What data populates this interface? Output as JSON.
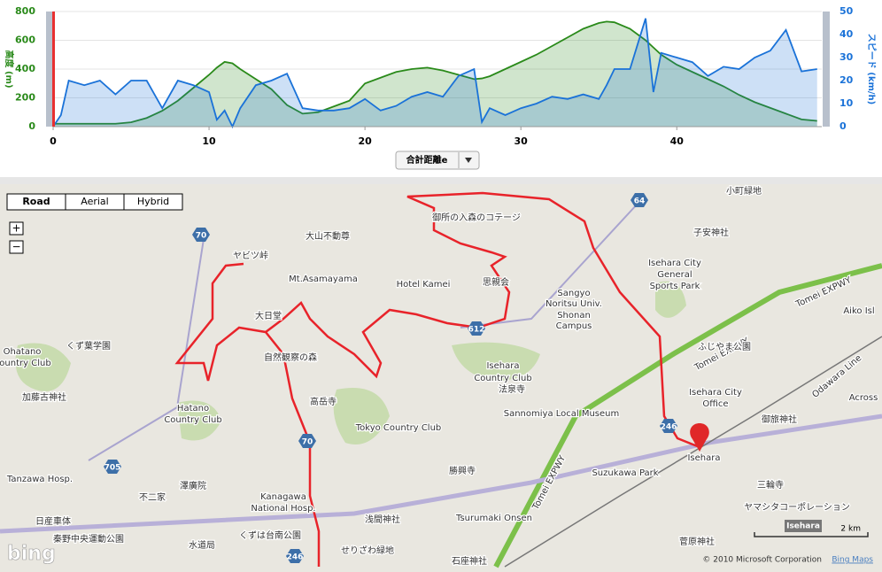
{
  "chart_data": {
    "type": "area",
    "x": [
      0,
      0.5,
      1,
      2,
      3,
      4,
      5,
      6,
      7,
      8,
      9,
      10,
      10.5,
      11,
      11.5,
      12,
      13,
      14,
      15,
      16,
      17,
      18,
      19,
      20,
      21,
      22,
      23,
      24,
      25,
      26,
      27,
      27.5,
      28,
      29,
      30,
      31,
      32,
      33,
      34,
      35,
      35.5,
      36,
      37,
      38,
      38.5,
      39,
      40,
      41,
      42,
      43,
      44,
      45,
      46,
      47,
      48,
      49
    ],
    "series": [
      {
        "color": "#2a8a1a",
        "axis": "y",
        "values": [
          20,
          20,
          20,
          20,
          20,
          20,
          30,
          60,
          110,
          180,
          270,
          360,
          410,
          450,
          440,
          400,
          330,
          260,
          150,
          90,
          100,
          140,
          180,
          300,
          340,
          380,
          400,
          410,
          390,
          360,
          330,
          335,
          350,
          400,
          450,
          500,
          560,
          620,
          680,
          720,
          730,
          725,
          680,
          600,
          550,
          500,
          430,
          380,
          330,
          280,
          220,
          170,
          130,
          90,
          50,
          40
        ]
      },
      {
        "color": "#1a72d8",
        "axis": "y2",
        "values": [
          0,
          5,
          20,
          18,
          20,
          14,
          20,
          20,
          8,
          20,
          18,
          15,
          3,
          7,
          0,
          8,
          18,
          20,
          23,
          8,
          7,
          7,
          8,
          12,
          7,
          9,
          13,
          15,
          13,
          22,
          25,
          2,
          8,
          5,
          8,
          10,
          13,
          12,
          14,
          12,
          18,
          25,
          25,
          47,
          15,
          32,
          30,
          28,
          22,
          26,
          25,
          30,
          33,
          42,
          24,
          25
        ]
      }
    ],
    "xlim": [
      0,
      49.3
    ],
    "xticks": [
      0,
      10,
      20,
      30,
      40
    ],
    "ylim": [
      0,
      800
    ],
    "yticks": [
      0,
      200,
      400,
      600,
      800
    ],
    "y2lim": [
      0,
      50
    ],
    "y2ticks": [
      0,
      10,
      20,
      30,
      40,
      50
    ],
    "ylabel": "高度 (m)",
    "y2label": "スピード (km/h)"
  },
  "controls": {
    "x_axis_select": "合計距離e"
  },
  "map": {
    "view_buttons": [
      "Road",
      "Aerial",
      "Hybrid"
    ],
    "zoom": [
      "+",
      "−"
    ],
    "labels": [
      "小町緑地",
      "子安神社",
      "Isehara City",
      "General",
      "Sports Park",
      "御所の入森のコテージ",
      "ヤビツ峠",
      "大山不動尊",
      "Mt.Asamayama",
      "Hotel Kamei",
      "思親会",
      "Sangyo",
      "Noritsu Univ.",
      "Shonan",
      "Campus",
      "Tomei EXPWY",
      "Tomei EXPWY",
      "大日堂",
      "くず葉学園",
      "Ohatano",
      "Country Club",
      "自然観察の森",
      "ふじやま公園",
      "Isehara",
      "Country Club",
      "法泉寺",
      "Isehara City",
      "Office",
      "加藤古神社",
      "高岳寺",
      "Hatano",
      "Country Club",
      "Sannomiya Local Museum",
      "御旅神社",
      "Tokyo Country Club",
      "Isehara",
      "Suzukawa Park",
      "勝興寺",
      "Tanzawa Hosp.",
      "澤廣院",
      "不二家",
      "三輪寺",
      "Kanagawa",
      "National Hosp.",
      "日産車体",
      "浅間神社",
      "ヤマシタコーポレーション",
      "秦野中央運動公園",
      "くずは台南公園",
      "水道局",
      "Tsurumaki Onsen",
      "菅原神社",
      "せりざわ緑地",
      "石座神社",
      "Tomei EXPWY",
      "Odawara Line",
      "Aiko Isl",
      "Across"
    ],
    "shields": [
      "70",
      "64",
      "612",
      "246",
      "70",
      "705",
      "246"
    ],
    "scale": "2 km",
    "location": "Isehara",
    "logo": "bing",
    "copyright": "© 2010 Microsoft Corporation",
    "link": "Bing Maps"
  }
}
